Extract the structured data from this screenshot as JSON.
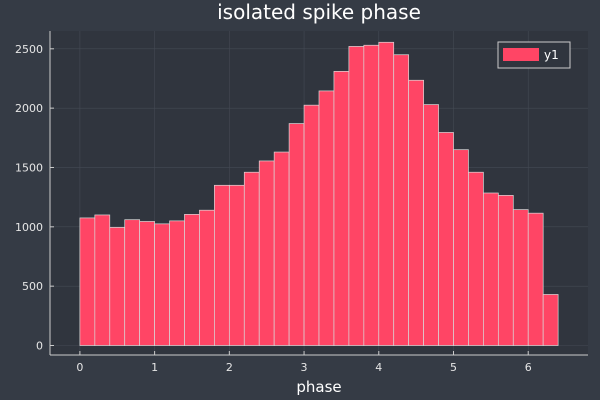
{
  "colors": {
    "background": "#353b45",
    "plot_background": "#30353e",
    "bar_fill": "#ff4565",
    "bar_stroke": "#d9d9d9",
    "grid": "#444a54",
    "axis": "#cccccc"
  },
  "chart_data": {
    "type": "bar",
    "title": "isolated spike phase",
    "xlabel": "phase",
    "ylabel": "",
    "legend": {
      "position": "top-right",
      "entries": [
        "y1"
      ]
    },
    "grid": true,
    "xlim": [
      -0.4,
      6.8
    ],
    "ylim": [
      -80,
      2650
    ],
    "xticks": [
      0,
      1,
      2,
      3,
      4,
      5,
      6
    ],
    "yticks": [
      0,
      500,
      1000,
      1500,
      2000,
      2500
    ],
    "bin_width": 0.2,
    "series": [
      {
        "name": "y1",
        "bin_edges": [
          0.0,
          0.2,
          0.4,
          0.6,
          0.8,
          1.0,
          1.2,
          1.4,
          1.6,
          1.8,
          2.0,
          2.2,
          2.4,
          2.6,
          2.8,
          3.0,
          3.2,
          3.4,
          3.6,
          3.8,
          4.0,
          4.2,
          4.4,
          4.6,
          4.8,
          5.0,
          5.2,
          5.4,
          5.6,
          5.8,
          6.0,
          6.2,
          6.4
        ],
        "values": [
          1075,
          1100,
          995,
          1060,
          1045,
          1025,
          1050,
          1105,
          1140,
          1350,
          1350,
          1460,
          1555,
          1630,
          1870,
          2025,
          2145,
          2310,
          2520,
          2530,
          2555,
          2450,
          2235,
          2030,
          1795,
          1650,
          1460,
          1285,
          1265,
          1145,
          1115,
          430
        ]
      }
    ]
  }
}
